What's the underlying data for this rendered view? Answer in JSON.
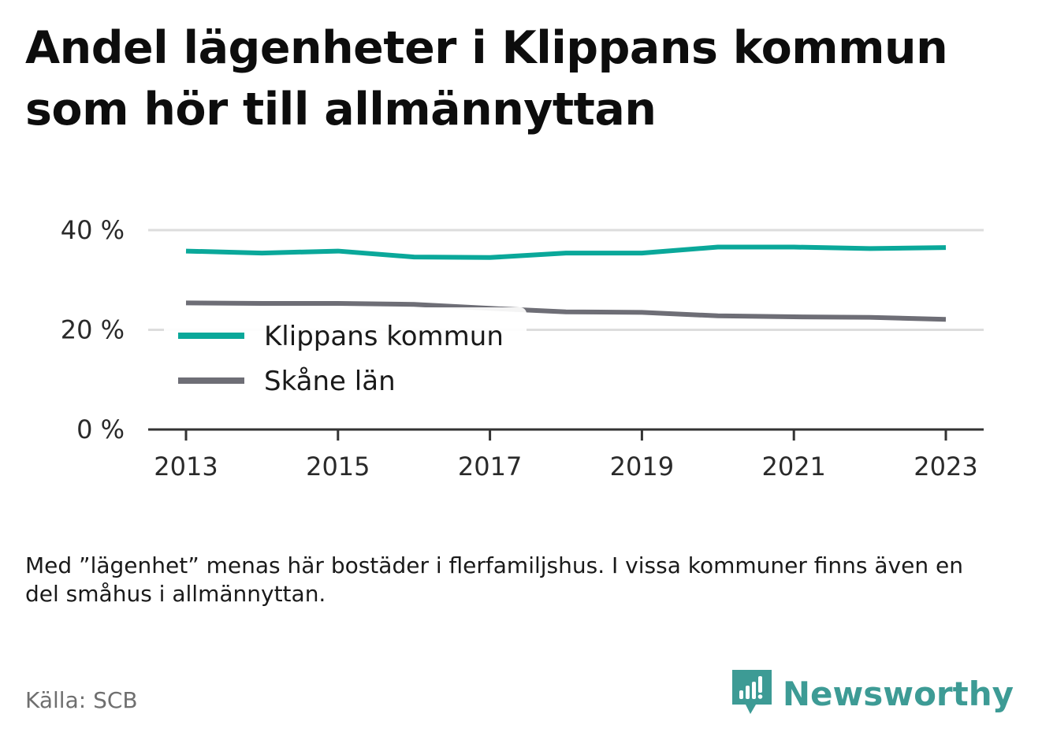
{
  "title": {
    "line1": "Andel lägenheter i Klippans kommun",
    "line2": "som hör till allmännyttan"
  },
  "colors": {
    "klippan": "#0aa89a",
    "skane": "#6e6e76",
    "grid": "#dddddd",
    "axis": "#333333",
    "brand": "#3d9b95"
  },
  "chart_data": {
    "type": "line",
    "x": [
      2013,
      2014,
      2015,
      2016,
      2017,
      2018,
      2019,
      2020,
      2021,
      2022,
      2023
    ],
    "series": [
      {
        "name": "Klippans kommun",
        "color": "#0aa89a",
        "values": [
          35.8,
          35.4,
          35.8,
          34.6,
          34.5,
          35.4,
          35.4,
          36.6,
          36.6,
          36.3,
          36.5
        ]
      },
      {
        "name": "Skåne län",
        "color": "#6e6e76",
        "values": [
          25.4,
          25.3,
          25.3,
          25.1,
          24.3,
          23.6,
          23.5,
          22.8,
          22.6,
          22.5,
          22.1
        ]
      }
    ],
    "ylim": [
      0,
      40
    ],
    "yticks": [
      0,
      20,
      40
    ],
    "ytick_labels": [
      "0 %",
      "20 %",
      "40 %"
    ],
    "xticks": [
      2013,
      2015,
      2017,
      2019,
      2021,
      2023
    ],
    "xtick_labels": [
      "2013",
      "2015",
      "2017",
      "2019",
      "2021",
      "2023"
    ],
    "grid": true,
    "legend_position": "lower-left"
  },
  "note": "Med ”lägenhet” menas här bostäder i flerfamiljshus. I vissa kommuner finns även en del småhus i allmännyttan.",
  "source": "Källa: SCB",
  "brand": {
    "name": "Newsworthy",
    "icon": "newsworthy-logo-icon"
  }
}
